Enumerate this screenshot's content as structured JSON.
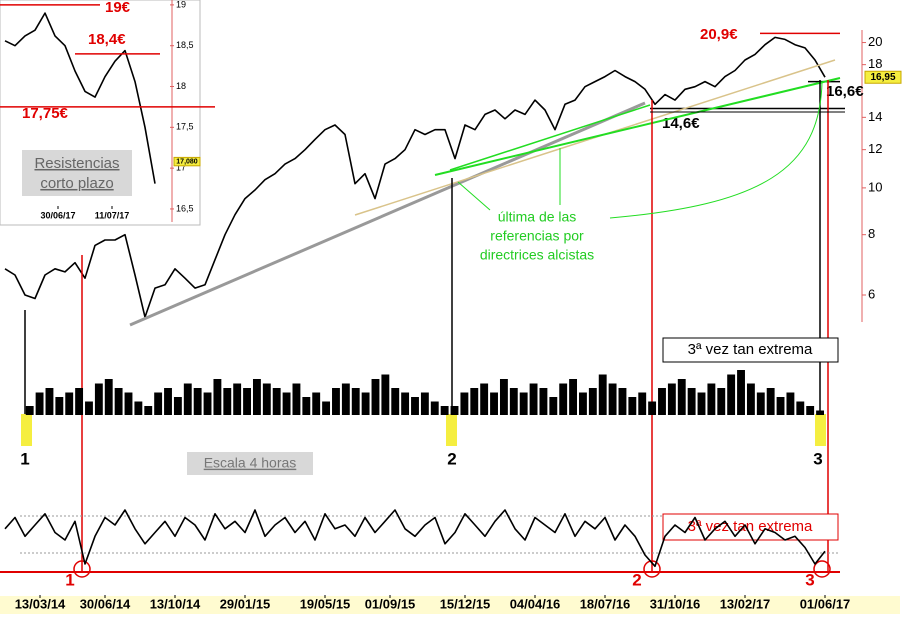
{
  "chart_data": [
    {
      "type": "line",
      "log": true,
      "color": "#000000",
      "values": [
        6.8,
        6.6,
        6.0,
        5.9,
        6.6,
        6.8,
        6.7,
        7.0,
        6.5,
        7.6,
        7.8,
        7.8,
        8.0,
        6.6,
        5.4,
        6.2,
        6.3,
        6.8,
        6.5,
        6.2,
        6.3,
        7.1,
        8.0,
        8.8,
        9.5,
        9.9,
        10.4,
        10.7,
        11.2,
        11.5,
        12.0,
        12.6,
        13.2,
        13.5,
        12.9,
        10.2,
        10.7,
        9.5,
        11.2,
        11.5,
        12.0,
        13.2,
        12.9,
        13.2,
        13.2,
        11.5,
        13.5,
        13.2,
        14.2,
        14.5,
        13.9,
        14.5,
        14.2,
        15.2,
        14.5,
        13.2,
        14.9,
        15.2,
        16.2,
        16.6,
        17.0,
        17.5,
        17.0,
        16.6,
        16.0,
        14.9,
        15.6,
        15.2,
        16.0,
        16.2,
        16.6,
        16.2,
        17.0,
        17.5,
        18.4,
        18.9,
        19.8,
        20.5,
        20.3,
        19.8,
        19.5,
        18.4,
        16.95
      ],
      "xlim": [
        0,
        82
      ],
      "xticks": [
        {
          "value": 3.5,
          "label": "13/03/14"
        },
        {
          "value": 10,
          "label": "30/06/14"
        },
        {
          "value": 17,
          "label": "13/10/14"
        },
        {
          "value": 24,
          "label": "29/01/15"
        },
        {
          "value": 32,
          "label": "19/05/15"
        },
        {
          "value": 38.5,
          "label": "01/09/15"
        },
        {
          "value": 46,
          "label": "15/12/15"
        },
        {
          "value": 53,
          "label": "04/04/16"
        },
        {
          "value": 60,
          "label": "18/07/16"
        },
        {
          "value": 67,
          "label": "31/10/16"
        },
        {
          "value": 74,
          "label": "13/02/17"
        },
        {
          "value": 82,
          "label": "01/06/17"
        }
      ],
      "ylim": [
        5.2,
        24.5
      ],
      "yticks": [
        6,
        8,
        10,
        12,
        14,
        18,
        20
      ],
      "price_marker": {
        "value": 16.95,
        "label": "16,95"
      },
      "levels": [
        20.9,
        16.6,
        14.6
      ],
      "level_labels": [
        "20,9€",
        "16,6€",
        "14,6€"
      ],
      "level_colors": [
        "#e00000",
        "#000000",
        "#000000"
      ],
      "annotations": [
        "última de las",
        "referencias por",
        "directrices alcistas"
      ]
    },
    {
      "type": "line",
      "color": "#000000",
      "values": [
        18.56,
        18.5,
        18.62,
        18.69,
        18.9,
        18.62,
        18.5,
        18.19,
        17.94,
        17.87,
        18.12,
        18.31,
        18.44,
        18.06,
        17.5,
        16.81
      ],
      "xlim": [
        0,
        15
      ],
      "xticks": [
        {
          "value": 5.3,
          "label": "30/06/17"
        },
        {
          "value": 10.7,
          "label": "11/07/17"
        }
      ],
      "ylim": [
        16.34,
        19.06
      ],
      "yticks": [
        19,
        {
          "value": 18.5,
          "label": "18,5"
        },
        18,
        {
          "value": 17.5,
          "label": "17,5"
        },
        17,
        {
          "value": 16.5,
          "label": "16,5"
        }
      ],
      "price_marker": {
        "value": 17.08,
        "label": "17,080"
      },
      "levels": [
        19,
        18.4,
        17.75
      ],
      "level_labels": [
        "19€",
        "18,4€",
        "17,75€"
      ],
      "level_colors": [
        "#e00000",
        "#e00000",
        "#e00000"
      ],
      "annotations": [
        "Resistencias",
        "corto plazo"
      ]
    },
    {
      "type": "bar",
      "color": "#000000",
      "values": [
        0,
        0,
        2,
        5,
        6,
        4,
        5,
        6,
        3,
        7,
        8,
        6,
        5,
        3,
        2,
        5,
        6,
        4,
        7,
        6,
        5,
        8,
        6,
        7,
        6,
        8,
        7,
        6,
        5,
        7,
        4,
        5,
        3,
        6,
        7,
        6,
        5,
        8,
        9,
        6,
        5,
        4,
        5,
        3,
        2,
        2,
        5,
        6,
        7,
        5,
        8,
        6,
        5,
        7,
        6,
        4,
        7,
        8,
        5,
        6,
        9,
        7,
        6,
        4,
        5,
        3,
        6,
        7,
        8,
        6,
        5,
        7,
        6,
        9,
        10,
        7,
        5,
        6,
        4,
        5,
        3,
        2,
        1
      ],
      "ylim": [
        0,
        10
      ],
      "annotations": [
        "3ª vez tan extrema",
        "Escala 4 horas"
      ],
      "event_labels": [
        "1",
        "2",
        "3"
      ]
    },
    {
      "type": "line",
      "color": "#000000",
      "values": [
        55,
        70,
        45,
        60,
        75,
        50,
        40,
        65,
        8,
        45,
        70,
        60,
        80,
        55,
        35,
        50,
        65,
        45,
        70,
        60,
        40,
        75,
        55,
        65,
        50,
        80,
        45,
        60,
        70,
        50,
        65,
        40,
        75,
        55,
        60,
        45,
        70,
        50,
        65,
        80,
        55,
        45,
        60,
        70,
        35,
        50,
        75,
        60,
        45,
        65,
        80,
        55,
        40,
        70,
        60,
        50,
        75,
        45,
        65,
        55,
        70,
        40,
        60,
        45,
        20,
        5,
        45,
        60,
        50,
        70,
        40,
        55,
        65,
        45,
        60,
        35,
        55,
        50,
        40,
        45,
        30,
        8,
        25
      ],
      "ylim": [
        0,
        100
      ],
      "annotations": [
        "3ª vez tan extrema"
      ],
      "event_labels": [
        "1",
        "2",
        "3"
      ]
    }
  ]
}
